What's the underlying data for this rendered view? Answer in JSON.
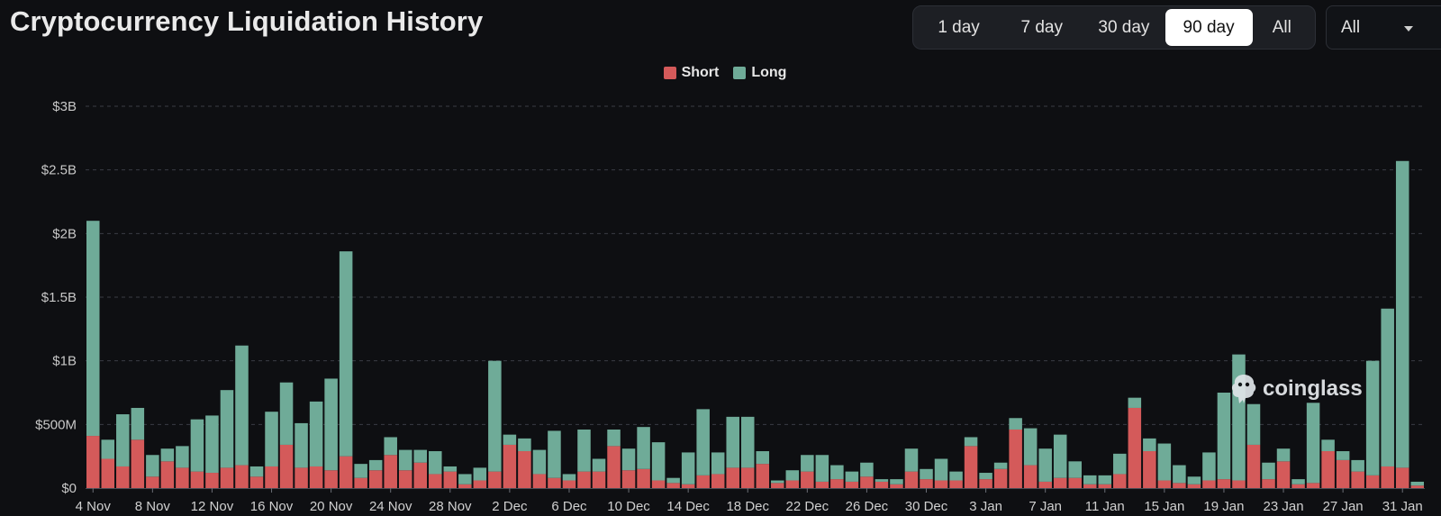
{
  "header": {
    "title": "Cryptocurrency Liquidation History"
  },
  "range_tabs": [
    {
      "label": "1 day",
      "active": false
    },
    {
      "label": "7 day",
      "active": false
    },
    {
      "label": "30 day",
      "active": false
    },
    {
      "label": "90 day",
      "active": true
    },
    {
      "label": "All",
      "active": false
    }
  ],
  "filter": {
    "selected": "All"
  },
  "watermark": {
    "text": "coinglass",
    "icon": "coinglass-logo-icon"
  },
  "chart_data": {
    "type": "bar",
    "stacked": true,
    "colors": {
      "short": "#d45a5a",
      "long": "#6fab98",
      "background": "#0e0f12"
    },
    "ylim": [
      0,
      3000000000
    ],
    "yticks": [
      {
        "value": 0,
        "label": "$0"
      },
      {
        "value": 500000000,
        "label": "$500M"
      },
      {
        "value": 1000000000,
        "label": "$1B"
      },
      {
        "value": 1500000000,
        "label": "$1.5B"
      },
      {
        "value": 2000000000,
        "label": "$2B"
      },
      {
        "value": 2500000000,
        "label": "$2.5B"
      },
      {
        "value": 3000000000,
        "label": "$3B"
      }
    ],
    "grid": true,
    "legend_position": "top-center",
    "xtick_labels": [
      "4 Nov",
      "8 Nov",
      "12 Nov",
      "16 Nov",
      "20 Nov",
      "24 Nov",
      "28 Nov",
      "2 Dec",
      "6 Dec",
      "10 Dec",
      "14 Dec",
      "18 Dec",
      "22 Dec",
      "26 Dec",
      "30 Dec",
      "3 Jan",
      "7 Jan",
      "11 Jan",
      "15 Jan",
      "19 Jan",
      "23 Jan",
      "27 Jan",
      "31 Jan"
    ],
    "xtick_every": 4,
    "series": [
      {
        "name": "Short",
        "values_millions": [
          410,
          230,
          170,
          380,
          90,
          210,
          160,
          130,
          120,
          160,
          180,
          90,
          170,
          340,
          160,
          170,
          140,
          250,
          80,
          140,
          260,
          140,
          200,
          110,
          130,
          30,
          60,
          130,
          340,
          290,
          110,
          80,
          60,
          130,
          130,
          330,
          140,
          150,
          60,
          40,
          30,
          100,
          110,
          160,
          160,
          190,
          40,
          60,
          130,
          50,
          70,
          50,
          90,
          50,
          30,
          130,
          70,
          60,
          60,
          330,
          70,
          150,
          460,
          180,
          50,
          80,
          80,
          30,
          30,
          110,
          630,
          290,
          60,
          40,
          30,
          60,
          70,
          60,
          340,
          70,
          210,
          30,
          40,
          290,
          220,
          130,
          100,
          170,
          160,
          20
        ]
      },
      {
        "name": "Long",
        "values_millions": [
          1690,
          150,
          410,
          250,
          170,
          100,
          170,
          410,
          450,
          610,
          940,
          80,
          430,
          490,
          350,
          510,
          720,
          1610,
          110,
          80,
          140,
          160,
          100,
          180,
          40,
          80,
          100,
          870,
          80,
          100,
          190,
          370,
          50,
          330,
          100,
          130,
          170,
          330,
          300,
          40,
          250,
          520,
          170,
          400,
          400,
          100,
          20,
          80,
          130,
          210,
          110,
          80,
          110,
          20,
          40,
          180,
          80,
          170,
          70,
          70,
          50,
          50,
          90,
          290,
          260,
          340,
          130,
          70,
          70,
          160,
          80,
          100,
          290,
          140,
          60,
          220,
          680,
          990,
          320,
          130,
          100,
          40,
          630,
          90,
          70,
          90,
          900,
          1240,
          2410,
          30
        ]
      }
    ]
  }
}
